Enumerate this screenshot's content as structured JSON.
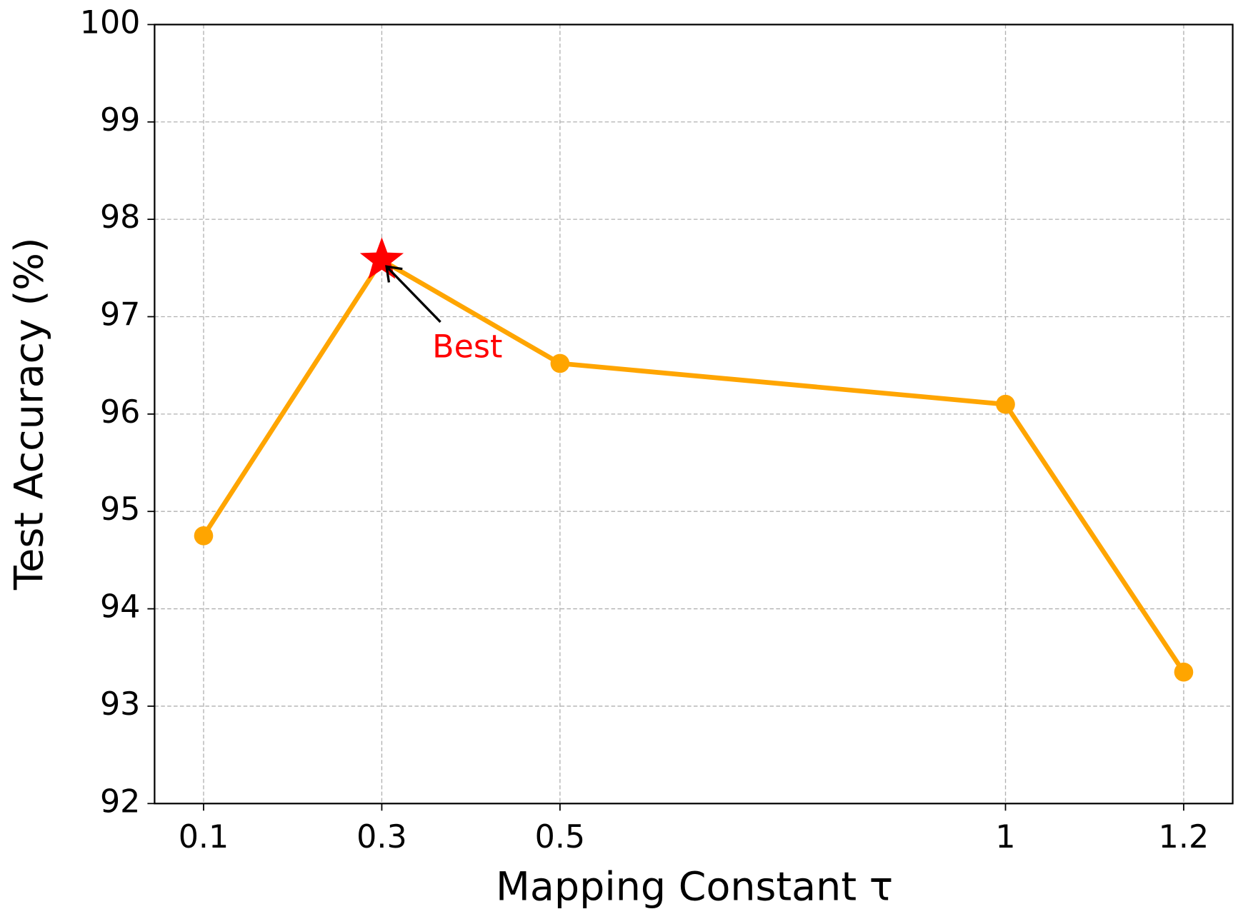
{
  "chart_data": {
    "type": "line",
    "xlabel": "Mapping Constant τ",
    "ylabel": "Test Accuracy (%)",
    "x": [
      0.1,
      0.3,
      0.5,
      1,
      1.2
    ],
    "series": [
      {
        "color": "#ffa500",
        "values": [
          94.75,
          97.58,
          96.52,
          96.1,
          93.35
        ]
      }
    ],
    "xlim": [
      0.045,
      1.255
    ],
    "ylim": [
      92,
      100
    ],
    "xticks": [
      0.1,
      0.3,
      0.5,
      1,
      1.2
    ],
    "yticks": [
      92,
      93,
      94,
      95,
      96,
      97,
      98,
      99,
      100
    ],
    "grid": true,
    "annotations": [
      {
        "text": "Best",
        "x": 0.3,
        "y": 97.58,
        "color": "#ff0000",
        "marker_color": "#ff0000"
      }
    ]
  }
}
